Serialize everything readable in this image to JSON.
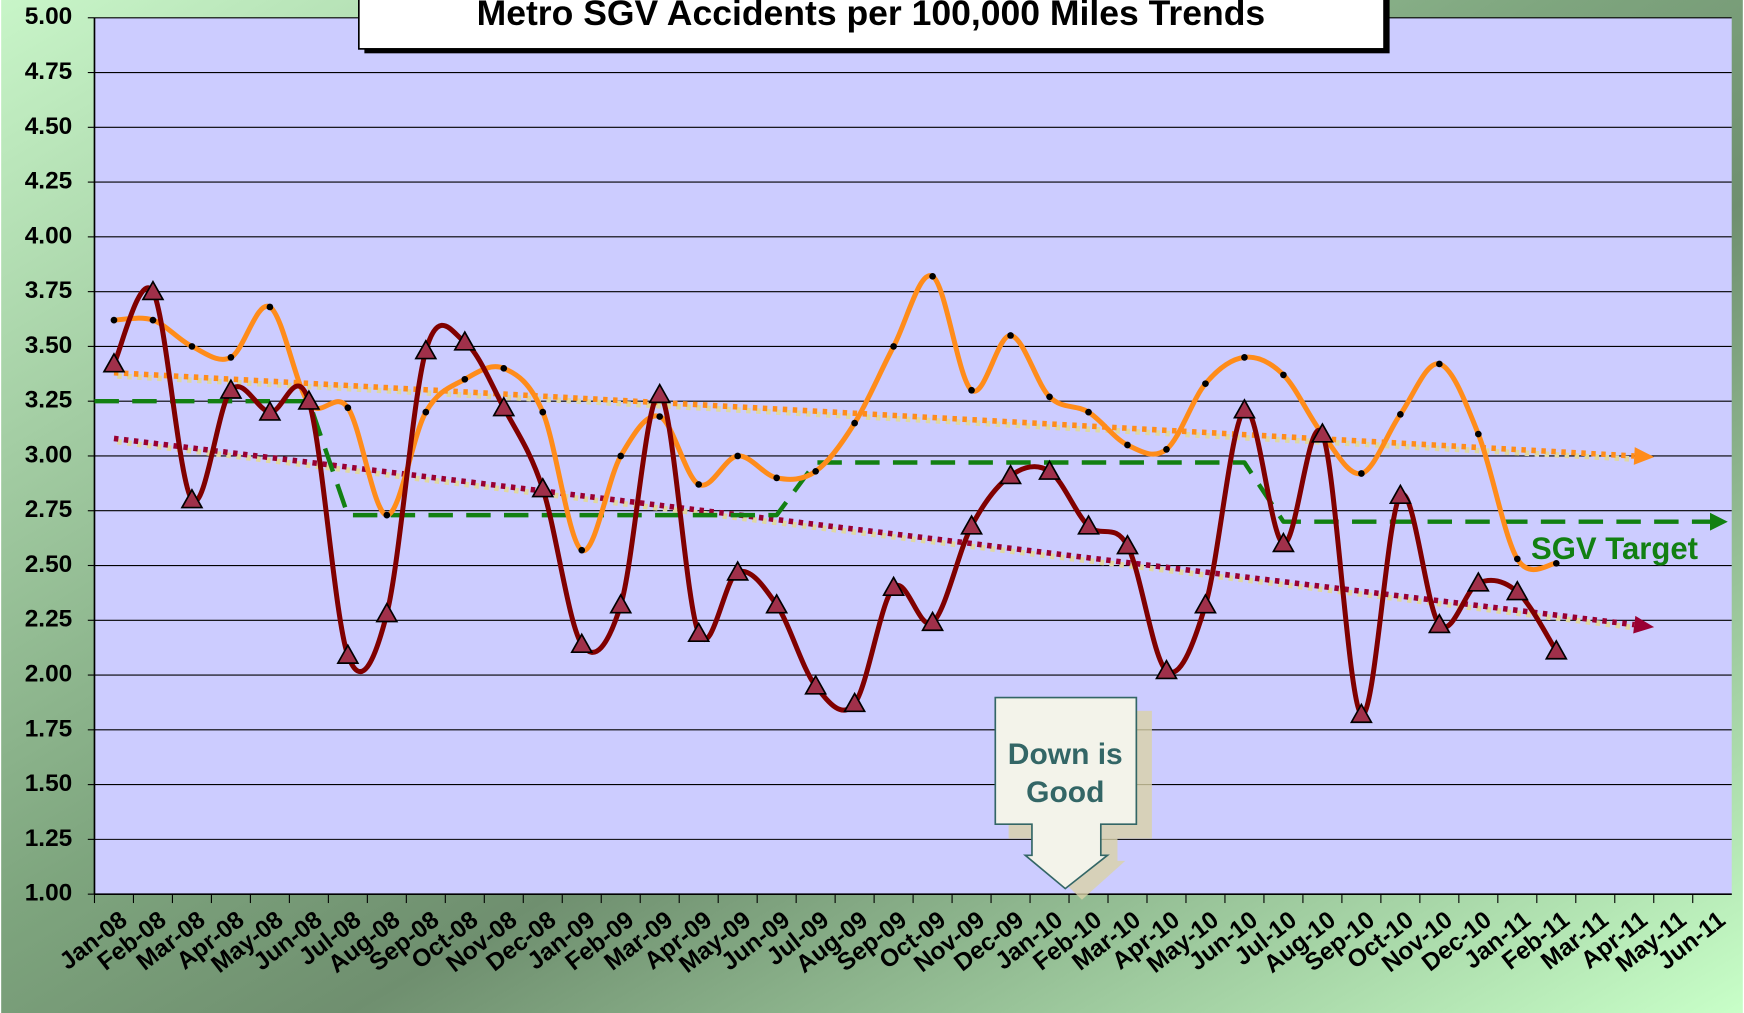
{
  "chart_data": {
    "type": "line",
    "title": "Metro SGV Accidents per 100,000 Miles Trends",
    "annotation": "Down is Good",
    "categories": [
      "Jan-08",
      "Feb-08",
      "Mar-08",
      "Apr-08",
      "May-08",
      "Jun-08",
      "Jul-08",
      "Aug-08",
      "Sep-08",
      "Oct-08",
      "Nov-08",
      "Dec-08",
      "Jan-09",
      "Feb-09",
      "Mar-09",
      "Apr-09",
      "May-09",
      "Jun-09",
      "Jul-09",
      "Aug-09",
      "Sep-09",
      "Oct-09",
      "Nov-09",
      "Dec-09",
      "Jan-10",
      "Feb-10",
      "Mar-10",
      "Apr-10",
      "May-10",
      "Jun-10",
      "Jul-10",
      "Aug-10",
      "Sep-10",
      "Oct-10",
      "Nov-10",
      "Dec-10",
      "Jan-11",
      "Feb-11",
      "Mar-11",
      "Apr-11",
      "May-11",
      "Jun-11"
    ],
    "series": [
      {
        "color": "#ff8c1a",
        "marker": "dot",
        "values": [
          3.62,
          3.62,
          3.5,
          3.45,
          3.68,
          3.24,
          3.22,
          2.73,
          3.2,
          3.35,
          3.4,
          3.2,
          2.57,
          3.0,
          3.18,
          2.87,
          3.0,
          2.9,
          2.93,
          3.15,
          3.5,
          3.82,
          3.3,
          3.55,
          3.27,
          3.2,
          3.05,
          3.03,
          3.33,
          3.45,
          3.37,
          3.1,
          2.92,
          3.19,
          3.42,
          3.1,
          2.53,
          2.51,
          null,
          null,
          null,
          null
        ]
      },
      {
        "color": "#800000",
        "marker": "triangle",
        "values": [
          3.42,
          3.75,
          2.8,
          3.3,
          3.2,
          3.25,
          2.09,
          2.28,
          3.48,
          3.52,
          3.22,
          2.85,
          2.14,
          2.32,
          3.28,
          2.19,
          2.47,
          2.32,
          1.95,
          1.87,
          2.4,
          2.24,
          2.68,
          2.91,
          2.93,
          2.68,
          2.59,
          2.02,
          2.32,
          3.21,
          2.6,
          3.1,
          1.82,
          2.82,
          2.23,
          2.42,
          2.38,
          2.11,
          null,
          null,
          null,
          null
        ]
      },
      {
        "name": "SGV Target",
        "color": "#128012",
        "marker": "none",
        "dashed": true,
        "values": [
          3.25,
          3.25,
          3.25,
          3.25,
          3.25,
          3.25,
          2.73,
          2.73,
          2.73,
          2.73,
          2.73,
          2.73,
          2.73,
          2.73,
          2.73,
          2.73,
          2.73,
          2.73,
          2.97,
          2.97,
          2.97,
          2.97,
          2.97,
          2.97,
          2.97,
          2.97,
          2.97,
          2.97,
          2.97,
          2.97,
          2.7,
          2.7,
          2.7,
          2.7,
          2.7,
          2.7,
          2.7,
          2.7,
          2.7,
          2.7,
          2.7,
          2.7
        ]
      }
    ],
    "trendlines": [
      {
        "color": "#ff8c1a",
        "from": "Jan-08",
        "to": "Apr-11",
        "values": [
          3.38,
          3.0
        ]
      },
      {
        "color": "#990033",
        "from": "Jan-08",
        "to": "Apr-11",
        "values": [
          3.08,
          2.23
        ]
      }
    ],
    "ylim": [
      1,
      5
    ],
    "yticks": [
      {
        "value": 1,
        "label": "1.00"
      },
      {
        "value": 1.25,
        "label": "1.25"
      },
      {
        "value": 1.5,
        "label": "1.50"
      },
      {
        "value": 1.75,
        "label": "1.75"
      },
      {
        "value": 2,
        "label": "2.00"
      },
      {
        "value": 2.25,
        "label": "2.25"
      },
      {
        "value": 2.5,
        "label": "2.50"
      },
      {
        "value": 2.75,
        "label": "2.75"
      },
      {
        "value": 3,
        "label": "3.00"
      },
      {
        "value": 3.25,
        "label": "3.25"
      },
      {
        "value": 3.5,
        "label": "3.50"
      },
      {
        "value": 3.75,
        "label": "3.75"
      },
      {
        "value": 4,
        "label": "4.00"
      },
      {
        "value": 4.25,
        "label": "4.25"
      },
      {
        "value": 4.5,
        "label": "4.50"
      },
      {
        "value": 4.75,
        "label": "4.75"
      },
      {
        "value": 5,
        "label": "5.00"
      }
    ],
    "grid": true,
    "plot_color": "#ccccff"
  }
}
